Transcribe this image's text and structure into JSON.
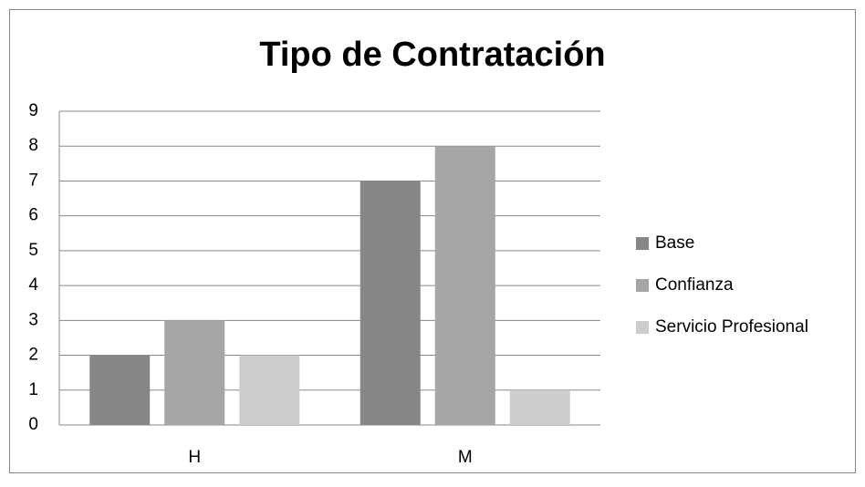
{
  "chart_data": {
    "type": "bar",
    "title": "Tipo de Contratación",
    "categories": [
      "H",
      "M"
    ],
    "series": [
      {
        "name": "Base",
        "color": "#878787",
        "values": [
          2,
          7
        ]
      },
      {
        "name": "Confianza",
        "color": "#a6a6a6",
        "values": [
          3,
          8
        ]
      },
      {
        "name": "Servicio Profesional",
        "color": "#cdcdcd",
        "values": [
          2,
          1
        ]
      }
    ],
    "ylim": [
      0,
      9
    ],
    "yticks": [
      0,
      1,
      2,
      3,
      4,
      5,
      6,
      7,
      8,
      9
    ],
    "grid": true,
    "legend": "right"
  }
}
